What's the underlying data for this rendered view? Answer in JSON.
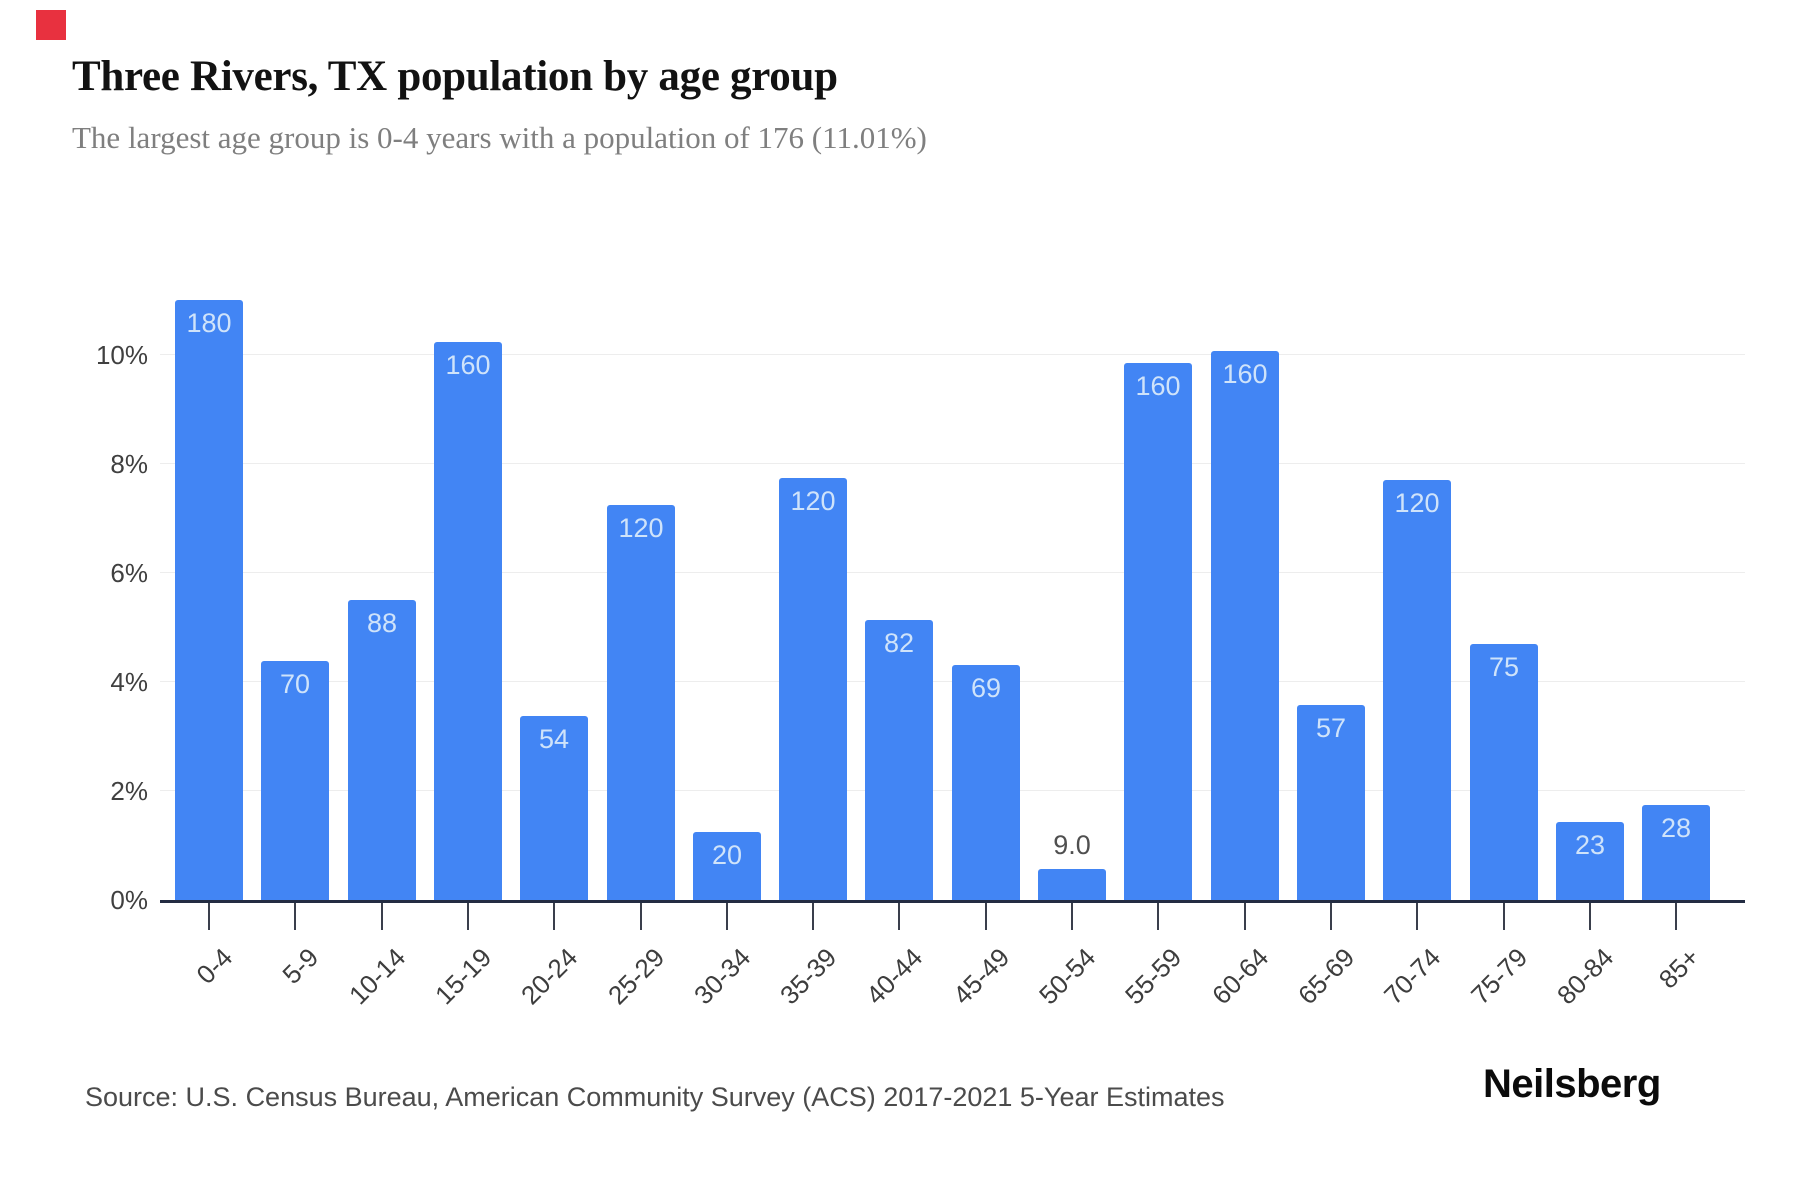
{
  "header": {
    "title": "Three Rivers, TX population by age group",
    "subtitle": "The largest age group is 0-4 years with a population of 176 (11.01%)"
  },
  "brand": {
    "wordmark": "Neilsberg",
    "accent_color": "#e8313f"
  },
  "footer": {
    "source": "Source: U.S. Census Bureau, American Community Survey (ACS) 2017-2021 5-Year Estimates"
  },
  "chart_data": {
    "type": "bar",
    "title": "Three Rivers, TX population by age group",
    "subtitle": "The largest age group is 0-4 years with a population of 176 (11.01%)",
    "xlabel": "",
    "ylabel": "",
    "categories": [
      "0-4",
      "5-9",
      "10-14",
      "15-19",
      "20-24",
      "25-29",
      "30-34",
      "35-39",
      "40-44",
      "45-49",
      "50-54",
      "55-59",
      "60-64",
      "65-69",
      "70-74",
      "75-79",
      "80-84",
      "85+"
    ],
    "values": [
      180,
      70,
      88,
      160,
      54,
      120,
      20,
      120,
      82,
      69,
      9,
      160,
      160,
      57,
      120,
      75,
      23,
      28
    ],
    "bar_labels": [
      "180",
      "70",
      "88",
      "160",
      "54",
      "120",
      "20",
      "120",
      "82",
      "69",
      "9.0",
      "160",
      "160",
      "57",
      "120",
      "75",
      "23",
      "28"
    ],
    "pct_heights": [
      11.01,
      4.38,
      5.5,
      10.24,
      3.38,
      7.25,
      1.25,
      7.74,
      5.13,
      4.32,
      0.56,
      9.85,
      10.07,
      3.57,
      7.7,
      4.69,
      1.44,
      1.75
    ],
    "label_outside_index": 10,
    "y_ticks": [
      {
        "label": "0%",
        "pct": 0
      },
      {
        "label": "2%",
        "pct": 2
      },
      {
        "label": "4%",
        "pct": 4
      },
      {
        "label": "6%",
        "pct": 6
      },
      {
        "label": "8%",
        "pct": 8
      },
      {
        "label": "10%",
        "pct": 10
      }
    ],
    "ylim": [
      0,
      11.4
    ],
    "grid": true,
    "legend": "none",
    "bar_color": "#4285f4",
    "bar_label_color": "#cfe3fa",
    "outside_label_color": "#4f4f4f",
    "largest_group": {
      "category": "0-4",
      "population": 176,
      "percent": "11.01%"
    }
  }
}
